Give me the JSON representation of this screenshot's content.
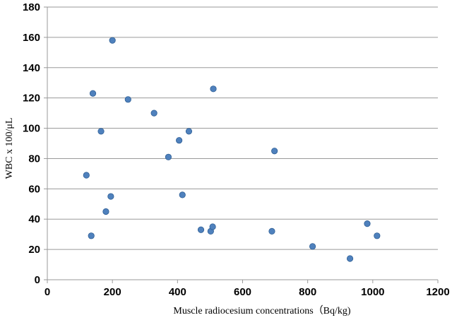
{
  "chart_data": {
    "type": "scatter",
    "title": "",
    "xlabel": "Muscle radiocesium concentrations（Bq/kg)",
    "ylabel": "WBC x 100/μL",
    "xlim": [
      0,
      1200
    ],
    "ylim": [
      0,
      180
    ],
    "x_ticks": [
      0,
      200,
      400,
      600,
      800,
      1000,
      1200
    ],
    "y_ticks": [
      0,
      20,
      40,
      60,
      80,
      100,
      120,
      140,
      160,
      180
    ],
    "grid": "horizontal",
    "legend": "none",
    "marker_color": "#4f81bd",
    "series": [
      {
        "points": [
          {
            "x": 120,
            "y": 69
          },
          {
            "x": 135,
            "y": 29
          },
          {
            "x": 140,
            "y": 123
          },
          {
            "x": 165,
            "y": 98
          },
          {
            "x": 180,
            "y": 45
          },
          {
            "x": 195,
            "y": 55
          },
          {
            "x": 200,
            "y": 158
          },
          {
            "x": 248,
            "y": 119
          },
          {
            "x": 328,
            "y": 110
          },
          {
            "x": 372,
            "y": 81
          },
          {
            "x": 405,
            "y": 92
          },
          {
            "x": 415,
            "y": 56
          },
          {
            "x": 435,
            "y": 98
          },
          {
            "x": 472,
            "y": 33
          },
          {
            "x": 502,
            "y": 32
          },
          {
            "x": 508,
            "y": 35
          },
          {
            "x": 510,
            "y": 126
          },
          {
            "x": 690,
            "y": 32
          },
          {
            "x": 698,
            "y": 85
          },
          {
            "x": 815,
            "y": 22
          },
          {
            "x": 930,
            "y": 14
          },
          {
            "x": 983,
            "y": 37
          },
          {
            "x": 1013,
            "y": 29
          }
        ]
      }
    ]
  }
}
